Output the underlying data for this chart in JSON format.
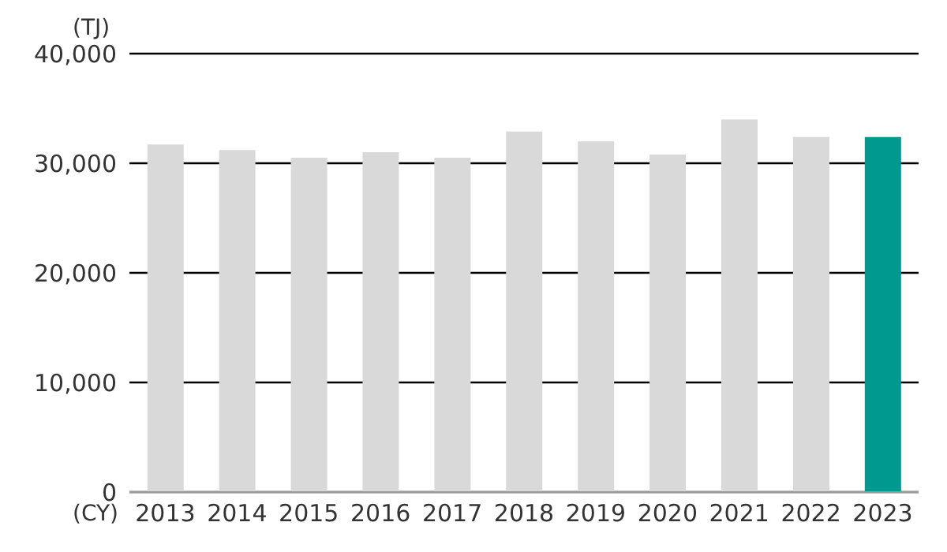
{
  "chart_data": {
    "type": "bar",
    "ylabel": "(TJ)",
    "xlabel": "(CY)",
    "categories": [
      "2013",
      "2014",
      "2015",
      "2016",
      "2017",
      "2018",
      "2019",
      "2020",
      "2021",
      "2022",
      "2023"
    ],
    "values": [
      31700,
      31200,
      30500,
      31000,
      30500,
      32900,
      32000,
      30800,
      34000,
      32400,
      32400
    ],
    "colors": [
      "#d9d9d9",
      "#d9d9d9",
      "#d9d9d9",
      "#d9d9d9",
      "#d9d9d9",
      "#d9d9d9",
      "#d9d9d9",
      "#d9d9d9",
      "#d9d9d9",
      "#d9d9d9",
      "#009990"
    ],
    "ylim": [
      0,
      40000
    ],
    "yticks": [
      {
        "value": 0,
        "label": "0"
      },
      {
        "value": 10000,
        "label": "10,000"
      },
      {
        "value": 20000,
        "label": "20,000"
      },
      {
        "value": 30000,
        "label": "30,000"
      },
      {
        "value": 40000,
        "label": "40,000"
      }
    ],
    "grid": "y"
  }
}
